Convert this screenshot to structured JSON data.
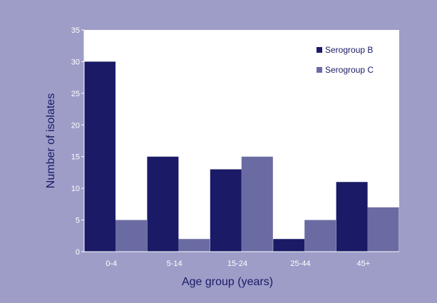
{
  "chart_data": {
    "type": "bar",
    "title": "",
    "xlabel": "Age group (years)",
    "ylabel": "Number of isolates",
    "categories": [
      "0-4",
      "5-14",
      "15-24",
      "25-44",
      "45+"
    ],
    "series": [
      {
        "name": "Serogroup B",
        "values": [
          30,
          15,
          13,
          2,
          11
        ],
        "color": "#1a1a66"
      },
      {
        "name": "Serogroup C",
        "values": [
          5,
          2,
          15,
          5,
          7
        ],
        "color": "#6b6ba3"
      }
    ],
    "ylim": [
      0,
      35
    ],
    "yticks": [
      0,
      5,
      10,
      15,
      20,
      25,
      30,
      35
    ],
    "grid": false,
    "legend_position": "top-right",
    "colors": {
      "background": "#9d9dc8",
      "plot_area": "#ffffff",
      "tick_text": "#ffffff",
      "title_text": "#1a1a66"
    }
  }
}
